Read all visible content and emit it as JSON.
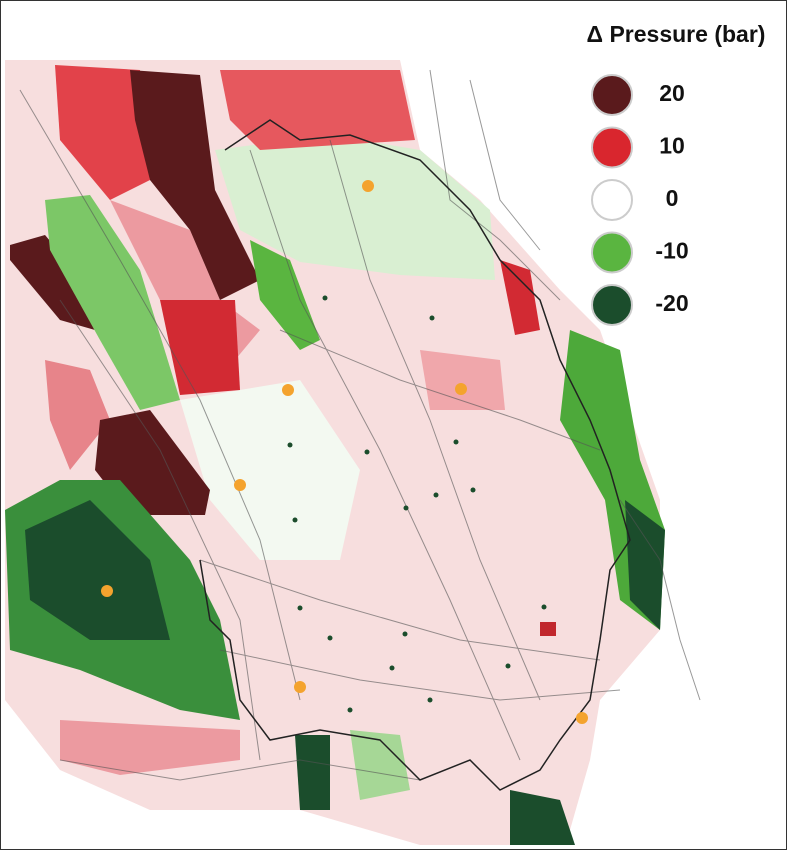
{
  "legend": {
    "title": "Δ Pressure (bar)",
    "items": [
      {
        "label": "20",
        "color": "#5a1a1c"
      },
      {
        "label": "10",
        "color": "#d9262e"
      },
      {
        "label": "0",
        "color": "#ffffff"
      },
      {
        "label": "-10",
        "color": "#5ab540"
      },
      {
        "label": "-20",
        "color": "#1b4d2c"
      }
    ]
  }
}
